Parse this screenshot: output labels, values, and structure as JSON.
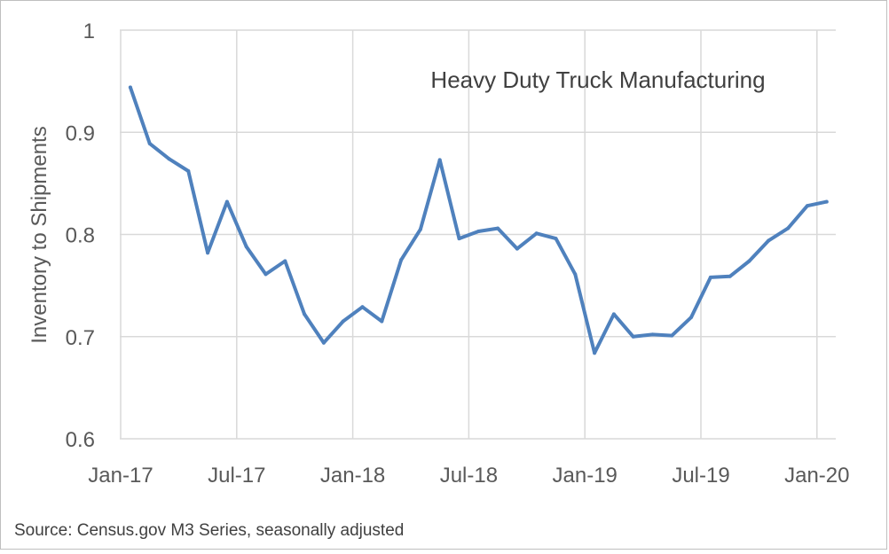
{
  "chart_data": {
    "type": "line",
    "title": "Heavy Duty Truck Manufacturing",
    "ylabel": "Inventory to Shipments",
    "xlabel": "",
    "source": "Source: Census.gov M3 Series, seasonally adjusted",
    "ylim": [
      0.6,
      1.0
    ],
    "yticks": [
      0.6,
      0.7,
      0.8,
      0.9,
      1.0
    ],
    "ytick_labels": [
      "0.6",
      "0.7",
      "0.8",
      "0.9",
      "1"
    ],
    "xticks": [
      "Jan-17",
      "Jul-17",
      "Jan-18",
      "Jul-18",
      "Jan-19",
      "Jul-19",
      "Jan-20"
    ],
    "grid": true,
    "line_color": "#4f81bd",
    "grid_color": "#d9d9d9",
    "x": [
      "2017-01",
      "2017-02",
      "2017-03",
      "2017-04",
      "2017-05",
      "2017-06",
      "2017-07",
      "2017-08",
      "2017-09",
      "2017-10",
      "2017-11",
      "2017-12",
      "2018-01",
      "2018-02",
      "2018-03",
      "2018-04",
      "2018-05",
      "2018-06",
      "2018-07",
      "2018-08",
      "2018-09",
      "2018-10",
      "2018-11",
      "2018-12",
      "2019-01",
      "2019-02",
      "2019-03",
      "2019-04",
      "2019-05",
      "2019-06",
      "2019-07",
      "2019-08",
      "2019-09",
      "2019-10",
      "2019-11",
      "2019-12",
      "2020-01"
    ],
    "series": [
      {
        "values": [
          0.944,
          0.889,
          0.874,
          0.862,
          0.782,
          0.832,
          0.788,
          0.761,
          0.774,
          0.722,
          0.694,
          0.715,
          0.729,
          0.715,
          0.775,
          0.805,
          0.873,
          0.796,
          0.803,
          0.806,
          0.786,
          0.801,
          0.796,
          0.761,
          0.684,
          0.722,
          0.7,
          0.702,
          0.701,
          0.719,
          0.758,
          0.759,
          0.774,
          0.794,
          0.806,
          0.828,
          0.832
        ]
      }
    ]
  }
}
